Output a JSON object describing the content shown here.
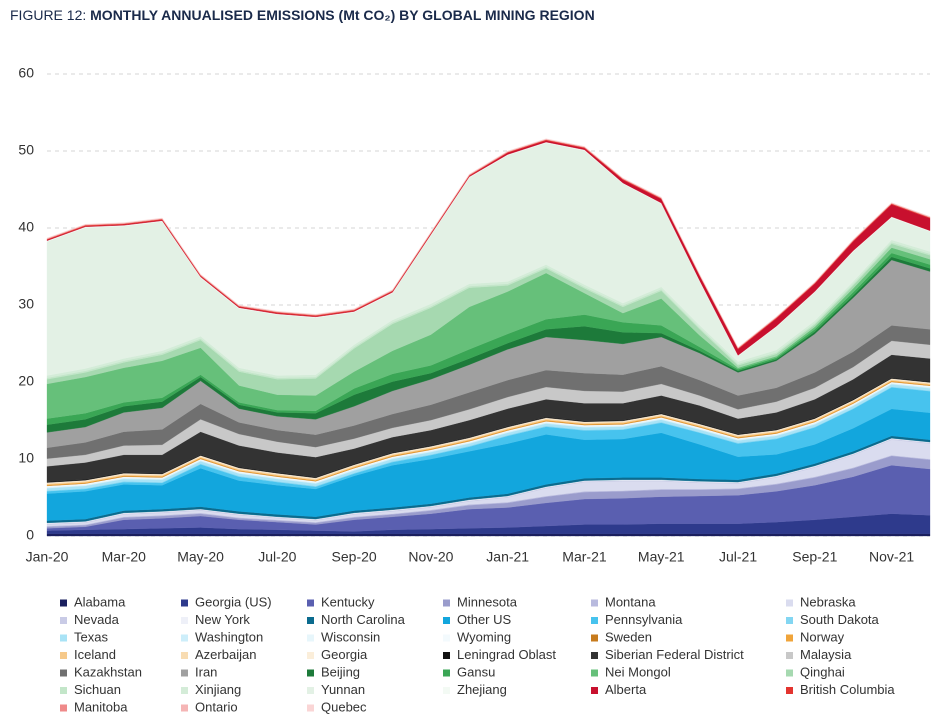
{
  "chart_data": {
    "type": "stacked_area",
    "figure_label": "FIGURE 12:",
    "title": "MONTHLY ANNUALISED EMISSIONS (Mt CO₂) BY GLOBAL MINING REGION",
    "categories": [
      "Jan-20",
      null,
      "Mar-20",
      null,
      "May-20",
      null,
      "Jul-20",
      null,
      "Sep-20",
      null,
      "Nov-20",
      null,
      "Jan-21",
      null,
      "Mar-21",
      null,
      "May-21",
      null,
      "Jul-21",
      null,
      "Sep-21",
      null,
      "Nov-21",
      null
    ],
    "ylim": [
      0,
      60
    ],
    "yticks": [
      0,
      10,
      20,
      30,
      40,
      50,
      60
    ],
    "grid": true,
    "series": [
      {
        "name": "Alabama",
        "color": "#1a1f5e",
        "values": [
          0.3,
          0.3,
          0.3,
          0.3,
          0.3,
          0.3,
          0.3,
          0.3,
          0.3,
          0.3,
          0.3,
          0.3,
          0.3,
          0.3,
          0.3,
          0.3,
          0.3,
          0.3,
          0.3,
          0.3,
          0.3,
          0.3,
          0.3,
          0.3
        ]
      },
      {
        "name": "Georgia (US)",
        "color": "#2e3a8c",
        "values": [
          0.4,
          0.5,
          0.6,
          0.7,
          0.8,
          0.6,
          0.5,
          0.4,
          0.3,
          0.5,
          0.6,
          0.7,
          0.8,
          1.0,
          1.2,
          1.2,
          1.3,
          1.3,
          1.3,
          1.5,
          1.8,
          2.2,
          2.6,
          2.4
        ]
      },
      {
        "name": "Kentucky",
        "color": "#5a5fb0",
        "values": [
          0.3,
          0.4,
          1.2,
          1.3,
          1.5,
          1.2,
          1.0,
          0.8,
          1.5,
          1.7,
          2.0,
          2.5,
          2.6,
          3.0,
          3.3,
          3.4,
          3.5,
          3.6,
          3.7,
          4.0,
          4.5,
          5.2,
          6.3,
          6.0
        ]
      },
      {
        "name": "Minnesota",
        "color": "#9a9ccc",
        "values": [
          0.2,
          0.2,
          0.3,
          0.3,
          0.3,
          0.2,
          0.2,
          0.2,
          0.3,
          0.3,
          0.4,
          0.5,
          0.6,
          0.8,
          0.9,
          0.9,
          0.9,
          0.8,
          0.8,
          0.9,
          1.0,
          1.1,
          1.2,
          1.2
        ]
      },
      {
        "name": "Montana",
        "color": "#b8bade",
        "values": [
          0.1,
          0.1,
          0.1,
          0.1,
          0.1,
          0.1,
          0.1,
          0.1,
          0.1,
          0.1,
          0.1,
          0.1,
          0.1,
          0.1,
          0.1,
          0.1,
          0.1,
          0.1,
          0.1,
          0.1,
          0.1,
          0.1,
          0.1,
          0.1
        ]
      },
      {
        "name": "Nebraska",
        "color": "#dadcef",
        "values": [
          0.2,
          0.2,
          0.3,
          0.3,
          0.3,
          0.3,
          0.2,
          0.2,
          0.3,
          0.3,
          0.3,
          0.4,
          0.6,
          1.0,
          1.2,
          1.2,
          1.0,
          0.8,
          0.6,
          0.8,
          1.2,
          1.6,
          2.0,
          2.0
        ]
      },
      {
        "name": "Nevada",
        "color": "#c9cbe6",
        "values": [
          0.1,
          0.1,
          0.1,
          0.1,
          0.1,
          0.1,
          0.1,
          0.1,
          0.1,
          0.1,
          0.1,
          0.1,
          0.1,
          0.1,
          0.1,
          0.1,
          0.1,
          0.1,
          0.1,
          0.1,
          0.1,
          0.1,
          0.1,
          0.1
        ]
      },
      {
        "name": "New York",
        "color": "#eef0f8",
        "values": [
          0.1,
          0.1,
          0.1,
          0.1,
          0.1,
          0.1,
          0.1,
          0.1,
          0.1,
          0.1,
          0.1,
          0.1,
          0.1,
          0.1,
          0.1,
          0.1,
          0.1,
          0.1,
          0.1,
          0.1,
          0.1,
          0.1,
          0.1,
          0.1
        ]
      },
      {
        "name": "North Carolina",
        "color": "#0b6b8e",
        "values": [
          0.3,
          0.3,
          0.3,
          0.3,
          0.3,
          0.3,
          0.3,
          0.3,
          0.3,
          0.3,
          0.3,
          0.3,
          0.3,
          0.3,
          0.3,
          0.3,
          0.3,
          0.3,
          0.3,
          0.3,
          0.3,
          0.3,
          0.3,
          0.3
        ]
      },
      {
        "name": "Other US",
        "color": "#12a6dd",
        "values": [
          3.5,
          3.6,
          3.4,
          3.1,
          5.0,
          4.0,
          3.8,
          3.6,
          4.5,
          5.5,
          5.8,
          6.0,
          6.5,
          6.5,
          5.0,
          5.0,
          5.8,
          4.5,
          3.0,
          2.5,
          2.5,
          3.0,
          3.5,
          3.5
        ]
      },
      {
        "name": "Pennsylvania",
        "color": "#47c3ee",
        "values": [
          0.3,
          0.3,
          0.3,
          0.3,
          0.5,
          0.5,
          0.4,
          0.3,
          0.3,
          0.4,
          0.5,
          0.6,
          1.0,
          1.0,
          1.2,
          1.2,
          1.3,
          1.5,
          1.7,
          2.0,
          2.2,
          2.5,
          2.8,
          2.8
        ]
      },
      {
        "name": "South Dakota",
        "color": "#83d6f2",
        "values": [
          0.1,
          0.1,
          0.1,
          0.1,
          0.1,
          0.1,
          0.1,
          0.1,
          0.1,
          0.1,
          0.1,
          0.1,
          0.1,
          0.1,
          0.1,
          0.1,
          0.1,
          0.1,
          0.1,
          0.1,
          0.1,
          0.1,
          0.1,
          0.1
        ]
      },
      {
        "name": "Texas",
        "color": "#a9e3f6",
        "values": [
          0.3,
          0.3,
          0.3,
          0.3,
          0.3,
          0.3,
          0.3,
          0.3,
          0.3,
          0.3,
          0.3,
          0.3,
          0.3,
          0.3,
          0.3,
          0.3,
          0.3,
          0.3,
          0.3,
          0.3,
          0.3,
          0.3,
          0.3,
          0.3
        ]
      },
      {
        "name": "Washington",
        "color": "#cdeefa",
        "values": [
          0.1,
          0.1,
          0.1,
          0.1,
          0.1,
          0.1,
          0.1,
          0.1,
          0.1,
          0.1,
          0.1,
          0.1,
          0.1,
          0.1,
          0.1,
          0.1,
          0.1,
          0.1,
          0.1,
          0.1,
          0.1,
          0.1,
          0.1,
          0.1
        ]
      },
      {
        "name": "Wisconsin",
        "color": "#e7f6fb",
        "values": [
          0.1,
          0.1,
          0.1,
          0.1,
          0.1,
          0.1,
          0.1,
          0.1,
          0.1,
          0.1,
          0.1,
          0.1,
          0.1,
          0.1,
          0.1,
          0.1,
          0.1,
          0.1,
          0.1,
          0.1,
          0.1,
          0.1,
          0.1,
          0.1
        ]
      },
      {
        "name": "Wyoming",
        "color": "#f3fafd",
        "values": [
          0.1,
          0.1,
          0.1,
          0.1,
          0.1,
          0.1,
          0.1,
          0.1,
          0.1,
          0.1,
          0.1,
          0.1,
          0.1,
          0.1,
          0.1,
          0.1,
          0.1,
          0.1,
          0.1,
          0.1,
          0.1,
          0.1,
          0.1,
          0.1
        ]
      },
      {
        "name": "Sweden",
        "color": "#c77b1d",
        "values": [
          0.05,
          0.05,
          0.05,
          0.05,
          0.05,
          0.05,
          0.05,
          0.05,
          0.05,
          0.05,
          0.05,
          0.05,
          0.05,
          0.05,
          0.05,
          0.05,
          0.05,
          0.05,
          0.05,
          0.05,
          0.05,
          0.05,
          0.05,
          0.05
        ]
      },
      {
        "name": "Norway",
        "color": "#f0a43a",
        "values": [
          0.1,
          0.1,
          0.1,
          0.1,
          0.1,
          0.1,
          0.1,
          0.1,
          0.1,
          0.1,
          0.1,
          0.1,
          0.1,
          0.1,
          0.1,
          0.1,
          0.1,
          0.1,
          0.1,
          0.1,
          0.1,
          0.1,
          0.1,
          0.1
        ]
      },
      {
        "name": "Iceland",
        "color": "#f6c98a",
        "values": [
          0.1,
          0.1,
          0.1,
          0.1,
          0.1,
          0.1,
          0.1,
          0.1,
          0.1,
          0.1,
          0.1,
          0.1,
          0.1,
          0.1,
          0.1,
          0.1,
          0.1,
          0.1,
          0.1,
          0.1,
          0.1,
          0.1,
          0.1,
          0.1
        ]
      },
      {
        "name": "Azerbaijan",
        "color": "#f8dcb2",
        "values": [
          0.1,
          0.1,
          0.1,
          0.1,
          0.1,
          0.1,
          0.1,
          0.1,
          0.1,
          0.1,
          0.1,
          0.1,
          0.1,
          0.1,
          0.1,
          0.1,
          0.1,
          0.1,
          0.1,
          0.1,
          0.1,
          0.1,
          0.1,
          0.1
        ]
      },
      {
        "name": "Georgia",
        "color": "#fbeeda",
        "values": [
          0.1,
          0.1,
          0.1,
          0.1,
          0.1,
          0.1,
          0.1,
          0.1,
          0.1,
          0.1,
          0.1,
          0.1,
          0.1,
          0.1,
          0.1,
          0.1,
          0.1,
          0.1,
          0.1,
          0.1,
          0.1,
          0.1,
          0.1,
          0.1
        ]
      },
      {
        "name": "Leningrad Oblast",
        "color": "#111111",
        "values": [
          0.1,
          0.1,
          0.1,
          0.1,
          0.1,
          0.1,
          0.1,
          0.1,
          0.1,
          0.1,
          0.1,
          0.1,
          0.1,
          0.1,
          0.1,
          0.1,
          0.1,
          0.1,
          0.1,
          0.1,
          0.1,
          0.1,
          0.1,
          0.1
        ]
      },
      {
        "name": "Siberian Federal District",
        "color": "#333333",
        "values": [
          2.0,
          2.2,
          2.3,
          2.4,
          3.0,
          2.8,
          2.6,
          2.6,
          2.0,
          2.0,
          2.0,
          2.2,
          2.3,
          2.3,
          2.3,
          2.2,
          2.3,
          2.3,
          2.0,
          2.2,
          2.4,
          2.6,
          3.0,
          3.0
        ]
      },
      {
        "name": "Malaysia",
        "color": "#c8c8c8",
        "values": [
          1.0,
          1.0,
          1.2,
          1.3,
          1.6,
          1.5,
          1.4,
          1.3,
          1.3,
          1.2,
          1.3,
          1.4,
          1.5,
          1.6,
          1.6,
          1.5,
          1.5,
          1.3,
          1.2,
          1.4,
          1.5,
          1.6,
          1.8,
          1.8
        ]
      },
      {
        "name": "Kazakhstan",
        "color": "#707070",
        "values": [
          1.4,
          1.6,
          1.8,
          2.0,
          2.0,
          1.5,
          1.5,
          1.6,
          1.7,
          1.8,
          2.0,
          2.2,
          2.2,
          2.2,
          2.3,
          2.2,
          2.3,
          2.0,
          1.8,
          1.8,
          2.0,
          2.0,
          2.0,
          2.0
        ]
      },
      {
        "name": "Iran",
        "color": "#a0a0a0",
        "values": [
          2.0,
          2.0,
          2.5,
          2.8,
          3.0,
          1.8,
          1.8,
          2.0,
          2.5,
          3.0,
          3.3,
          3.6,
          4.0,
          4.3,
          4.3,
          4.0,
          3.8,
          3.5,
          3.0,
          3.5,
          5.0,
          7.0,
          8.5,
          7.5
        ]
      },
      {
        "name": "Beijing",
        "color": "#1d7a3a",
        "values": [
          1.0,
          1.0,
          0.8,
          0.8,
          0.5,
          0.5,
          0.5,
          0.8,
          1.5,
          1.2,
          0.8,
          0.8,
          0.8,
          1.0,
          1.8,
          1.5,
          0.5,
          0.3,
          0.2,
          0.2,
          0.3,
          0.3,
          0.4,
          0.4
        ]
      },
      {
        "name": "Gansu",
        "color": "#3aa655",
        "values": [
          0.8,
          0.8,
          0.5,
          0.5,
          0.3,
          0.3,
          0.3,
          0.3,
          0.8,
          1.0,
          1.0,
          1.2,
          1.2,
          1.3,
          1.5,
          1.3,
          1.0,
          0.5,
          0.2,
          0.2,
          0.3,
          0.4,
          0.5,
          0.5
        ]
      },
      {
        "name": "Nei Mongol",
        "color": "#66c07a",
        "values": [
          4.5,
          4.7,
          4.5,
          4.8,
          3.5,
          2.2,
          2.0,
          2.0,
          2.2,
          3.0,
          4.0,
          5.5,
          5.5,
          6.0,
          2.8,
          1.2,
          3.5,
          1.5,
          0.2,
          0.2,
          0.3,
          0.5,
          0.7,
          0.7
        ]
      },
      {
        "name": "Qinghai",
        "color": "#a6d9b0",
        "values": [
          0.6,
          0.6,
          0.7,
          0.8,
          1.0,
          1.8,
          2.0,
          2.2,
          3.0,
          3.5,
          3.5,
          2.5,
          0.8,
          0.6,
          0.6,
          0.8,
          1.0,
          0.8,
          0.3,
          0.3,
          0.3,
          0.4,
          0.5,
          0.5
        ]
      },
      {
        "name": "Sichuan",
        "color": "#c3e6c9",
        "values": [
          0.2,
          0.2,
          0.2,
          0.2,
          0.2,
          0.2,
          0.2,
          0.2,
          0.2,
          0.2,
          0.2,
          0.2,
          0.2,
          0.2,
          0.2,
          0.2,
          0.2,
          0.2,
          0.2,
          0.2,
          0.2,
          0.2,
          0.2,
          0.2
        ]
      },
      {
        "name": "Xinjiang",
        "color": "#d4ecd8",
        "values": [
          0.3,
          0.3,
          0.3,
          0.3,
          0.3,
          0.3,
          0.3,
          0.3,
          0.3,
          0.3,
          0.3,
          0.3,
          0.3,
          0.3,
          0.3,
          0.3,
          0.3,
          0.3,
          0.3,
          0.3,
          0.3,
          0.3,
          0.3,
          0.3
        ]
      },
      {
        "name": "Yunnan",
        "color": "#e3f1e5",
        "values": [
          17.4,
          18.3,
          17.2,
          16.8,
          7.6,
          7.7,
          7.9,
          7.4,
          4.2,
          3.5,
          8.9,
          13.8,
          16.4,
          15.8,
          17.4,
          15.5,
          10.8,
          5.7,
          0.7,
          3.0,
          3.7,
          3.9,
          2.9,
          2.6
        ]
      },
      {
        "name": "Zhejiang",
        "color": "#f3faf4",
        "values": [
          0.1,
          0.1,
          0.1,
          0.1,
          0.1,
          0.1,
          0.1,
          0.1,
          0.1,
          0.1,
          0.1,
          0.1,
          0.1,
          0.1,
          0.1,
          0.1,
          0.1,
          0.1,
          0.1,
          0.1,
          0.1,
          0.1,
          0.1,
          0.1
        ]
      },
      {
        "name": "Alberta",
        "color": "#c8102e",
        "values": [
          0.1,
          0.1,
          0.1,
          0.1,
          0.1,
          0.1,
          0.1,
          0.1,
          0.1,
          0.1,
          0.1,
          0.1,
          0.2,
          0.2,
          0.2,
          0.4,
          0.5,
          0.6,
          0.8,
          1.0,
          1.0,
          1.2,
          1.6,
          1.6
        ]
      },
      {
        "name": "British Columbia",
        "color": "#e3342f",
        "values": [
          0.1,
          0.1,
          0.1,
          0.1,
          0.1,
          0.1,
          0.1,
          0.1,
          0.1,
          0.1,
          0.1,
          0.1,
          0.1,
          0.1,
          0.1,
          0.1,
          0.1,
          0.1,
          0.1,
          0.1,
          0.1,
          0.1,
          0.1,
          0.1
        ]
      },
      {
        "name": "Manitoba",
        "color": "#ef8a8a",
        "values": [
          0.05,
          0.05,
          0.05,
          0.05,
          0.05,
          0.05,
          0.05,
          0.05,
          0.05,
          0.05,
          0.05,
          0.05,
          0.05,
          0.05,
          0.05,
          0.05,
          0.05,
          0.05,
          0.05,
          0.05,
          0.05,
          0.05,
          0.05,
          0.05
        ]
      },
      {
        "name": "Ontario",
        "color": "#f5b5b5",
        "values": [
          0.05,
          0.05,
          0.05,
          0.05,
          0.05,
          0.05,
          0.05,
          0.05,
          0.05,
          0.05,
          0.05,
          0.05,
          0.05,
          0.05,
          0.05,
          0.05,
          0.05,
          0.05,
          0.05,
          0.05,
          0.05,
          0.05,
          0.05,
          0.05
        ]
      },
      {
        "name": "Quebec",
        "color": "#fad5d5",
        "values": [
          0.05,
          0.05,
          0.05,
          0.05,
          0.05,
          0.05,
          0.05,
          0.05,
          0.05,
          0.05,
          0.05,
          0.05,
          0.05,
          0.05,
          0.05,
          0.05,
          0.05,
          0.05,
          0.05,
          0.05,
          0.05,
          0.05,
          0.05,
          0.05
        ]
      }
    ]
  }
}
